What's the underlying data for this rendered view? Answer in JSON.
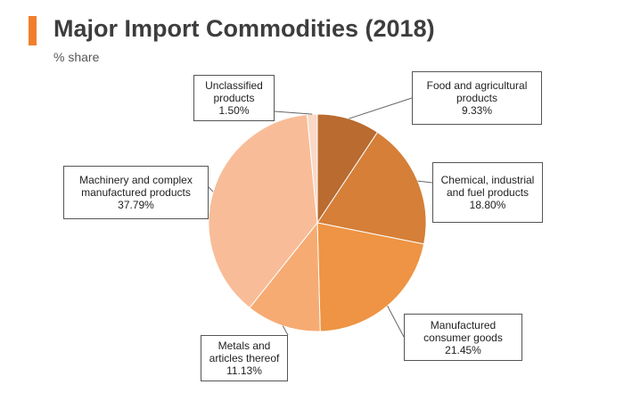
{
  "header": {
    "title": "Major Import Commodities (2018)",
    "subtitle": "% share",
    "accent_color": "#f07f2c"
  },
  "chart_data": {
    "type": "pie",
    "title": "Major Import Commodities (2018)",
    "subtitle": "% share",
    "start": "12 o'clock",
    "direction": "clockwise",
    "slices": [
      {
        "label": "Food and agricultural products",
        "display": "9.33%",
        "value": 9.33,
        "color": "#b96b30"
      },
      {
        "label": "Chemical, industrial and fuel products",
        "display": "18.80%",
        "value": 18.8,
        "color": "#d57f38"
      },
      {
        "label": "Manufactured consumer goods",
        "display": "21.45%",
        "value": 21.45,
        "color": "#ee9444"
      },
      {
        "label": "Metals and articles thereof",
        "display": "11.13%",
        "value": 11.13,
        "color": "#f6ab72"
      },
      {
        "label": "Machinery and complex manufactured products",
        "display": "37.79%",
        "value": 37.79,
        "color": "#f8bd98"
      },
      {
        "label": "Unclassified products",
        "display": "1.50%",
        "value": 1.5,
        "color": "#f9d8c6"
      }
    ]
  }
}
